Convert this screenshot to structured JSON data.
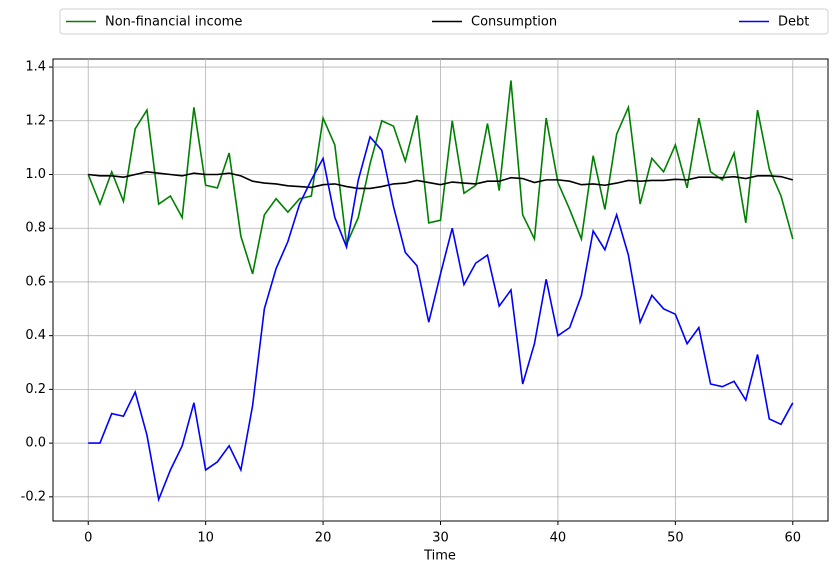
{
  "chart_data": {
    "type": "line",
    "xlabel": "Time",
    "x": [
      0,
      1,
      2,
      3,
      4,
      5,
      6,
      7,
      8,
      9,
      10,
      11,
      12,
      13,
      14,
      15,
      16,
      17,
      18,
      19,
      20,
      21,
      22,
      23,
      24,
      25,
      26,
      27,
      28,
      29,
      30,
      31,
      32,
      33,
      34,
      35,
      36,
      37,
      38,
      39,
      40,
      41,
      42,
      43,
      44,
      45,
      46,
      47,
      48,
      49,
      50,
      51,
      52,
      53,
      54,
      55,
      56,
      57,
      58,
      59,
      60
    ],
    "series": [
      {
        "name": "Non-financial income",
        "color": "#008000",
        "values": [
          1.0,
          0.89,
          1.01,
          0.9,
          1.17,
          1.24,
          0.89,
          0.92,
          0.84,
          1.25,
          0.96,
          0.95,
          1.08,
          0.77,
          0.63,
          0.85,
          0.91,
          0.86,
          0.91,
          0.92,
          1.21,
          1.11,
          0.74,
          0.84,
          1.04,
          1.2,
          1.18,
          1.05,
          1.22,
          0.82,
          0.83,
          1.2,
          0.93,
          0.96,
          1.19,
          0.94,
          1.35,
          0.85,
          0.76,
          1.21,
          0.97,
          0.87,
          0.76,
          1.07,
          0.87,
          1.15,
          1.25,
          0.89,
          1.06,
          1.01,
          1.11,
          0.95,
          1.21,
          1.01,
          0.98,
          1.08,
          0.82,
          1.24,
          1.02,
          0.92,
          0.76
        ]
      },
      {
        "name": "Consumption",
        "color": "#000000",
        "values": [
          1.0,
          0.995,
          0.995,
          0.99,
          1.0,
          1.01,
          1.005,
          1.0,
          0.995,
          1.005,
          1.0,
          1.0,
          1.005,
          0.995,
          0.975,
          0.968,
          0.965,
          0.958,
          0.955,
          0.952,
          0.962,
          0.965,
          0.955,
          0.948,
          0.948,
          0.955,
          0.965,
          0.968,
          0.978,
          0.97,
          0.962,
          0.972,
          0.968,
          0.965,
          0.975,
          0.975,
          0.988,
          0.985,
          0.97,
          0.98,
          0.98,
          0.975,
          0.962,
          0.965,
          0.96,
          0.968,
          0.978,
          0.975,
          0.978,
          0.978,
          0.982,
          0.98,
          0.99,
          0.99,
          0.988,
          0.992,
          0.985,
          0.995,
          0.995,
          0.992,
          0.98
        ]
      },
      {
        "name": "Debt",
        "color": "#0000ff",
        "values": [
          0.0,
          0.0,
          0.11,
          0.1,
          0.19,
          0.03,
          -0.21,
          -0.1,
          -0.01,
          0.15,
          -0.1,
          -0.07,
          -0.01,
          -0.1,
          0.14,
          0.5,
          0.65,
          0.75,
          0.89,
          0.98,
          1.06,
          0.84,
          0.73,
          0.98,
          1.14,
          1.09,
          0.88,
          0.71,
          0.66,
          0.45,
          0.63,
          0.8,
          0.59,
          0.67,
          0.7,
          0.51,
          0.57,
          0.22,
          0.37,
          0.61,
          0.4,
          0.43,
          0.55,
          0.79,
          0.72,
          0.85,
          0.7,
          0.45,
          0.55,
          0.5,
          0.48,
          0.37,
          0.43,
          0.22,
          0.21,
          0.23,
          0.16,
          0.33,
          0.09,
          0.07,
          0.15
        ]
      }
    ],
    "xlim": [
      -3,
      63
    ],
    "xticks": [
      0,
      10,
      20,
      30,
      40,
      50,
      60
    ],
    "ylim": [
      -0.29,
      1.43
    ],
    "yticks": [
      -0.2,
      {
        "value": 0,
        "label": "0.0"
      },
      0.2,
      0.4,
      0.6,
      0.8,
      {
        "value": 1,
        "label": "1.0"
      },
      1.2,
      1.4
    ],
    "grid": true,
    "legend": "top"
  }
}
